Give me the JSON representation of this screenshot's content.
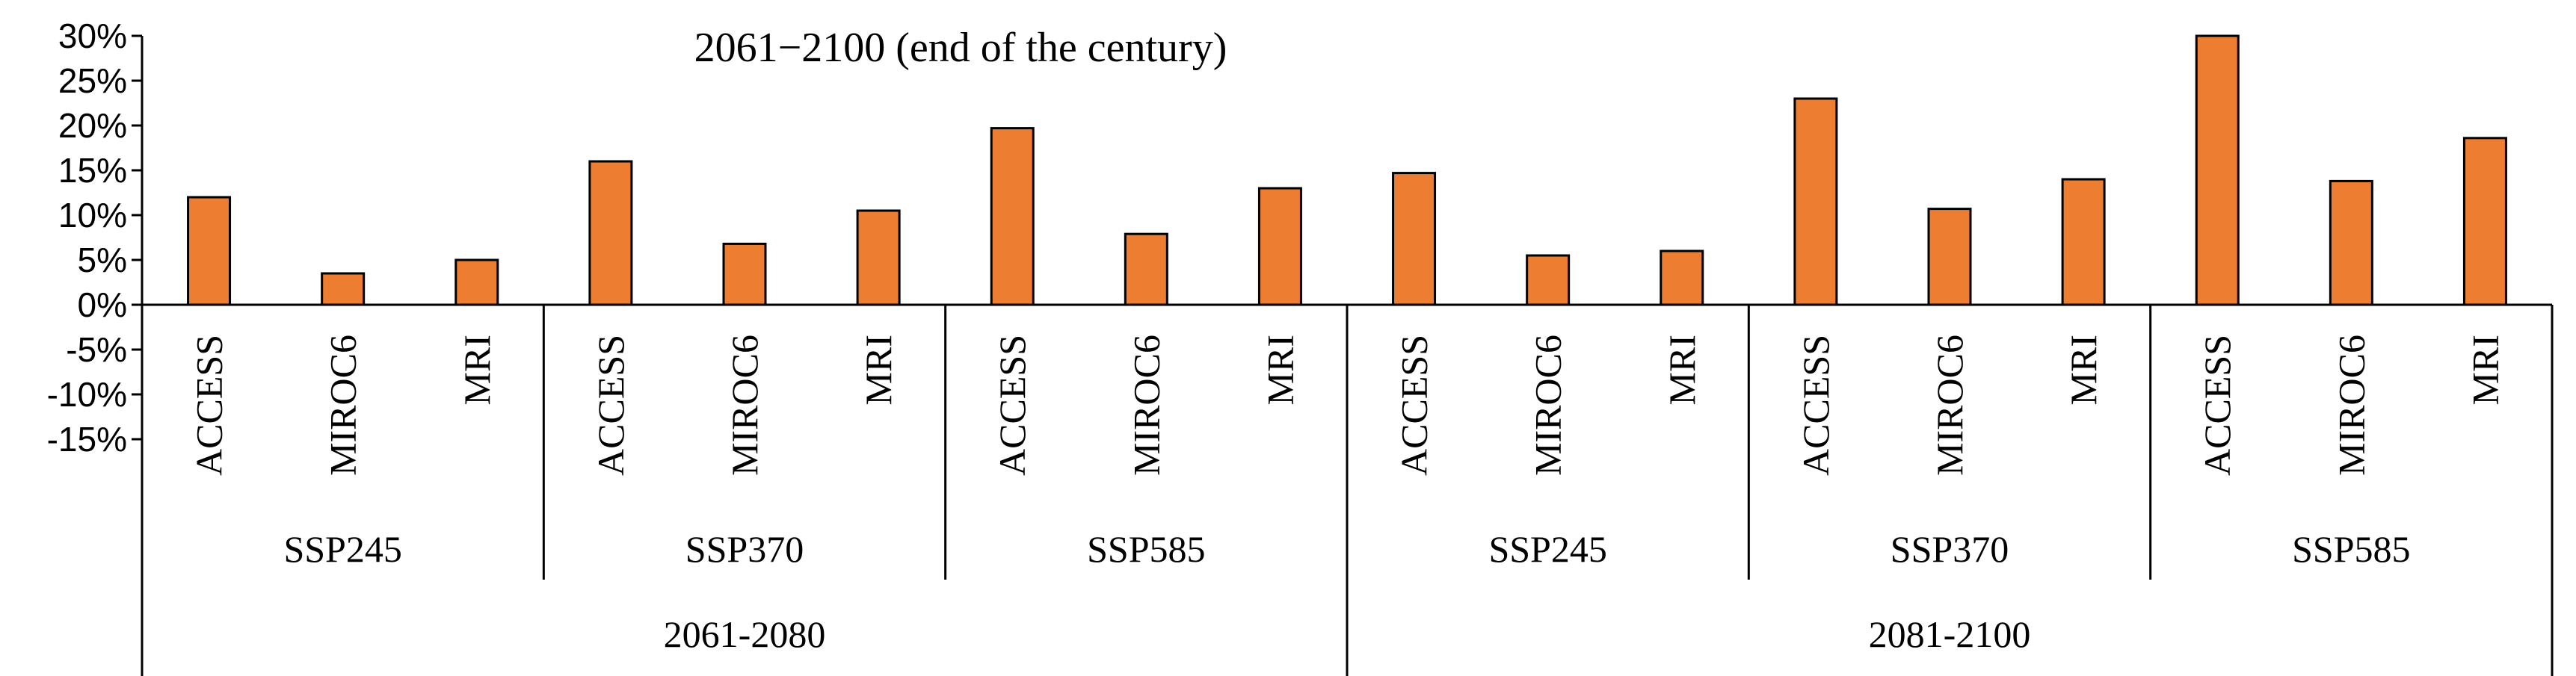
{
  "chart_data": {
    "type": "bar",
    "title": "2061−2100 (end of the century)",
    "xlabel": "",
    "ylabel": "",
    "ylim": [
      -15,
      30
    ],
    "yticks": [
      "30%",
      "25%",
      "20%",
      "15%",
      "10%",
      "5%",
      "0%",
      "-5%",
      "-10%",
      "-15%"
    ],
    "grid": false,
    "legend": "none",
    "bar_color": "#ED7D31",
    "bar_edge_color": "#000000",
    "periods": [
      "2061-2080",
      "2081-2100"
    ],
    "scenarios": [
      "SSP245",
      "SSP370",
      "SSP585",
      "SSP245",
      "SSP370",
      "SSP585"
    ],
    "categories": [
      "ACCESS",
      "MIROC6",
      "MRI",
      "ACCESS",
      "MIROC6",
      "MRI",
      "ACCESS",
      "MIROC6",
      "MRI",
      "ACCESS",
      "MIROC6",
      "MRI",
      "ACCESS",
      "MIROC6",
      "MRI",
      "ACCESS",
      "MIROC6",
      "MRI"
    ],
    "values": [
      12.0,
      3.5,
      5.0,
      16.0,
      6.8,
      10.5,
      19.7,
      7.9,
      13.0,
      14.7,
      5.5,
      6.0,
      23.0,
      10.7,
      14.0,
      30.0,
      13.8,
      18.6
    ]
  }
}
